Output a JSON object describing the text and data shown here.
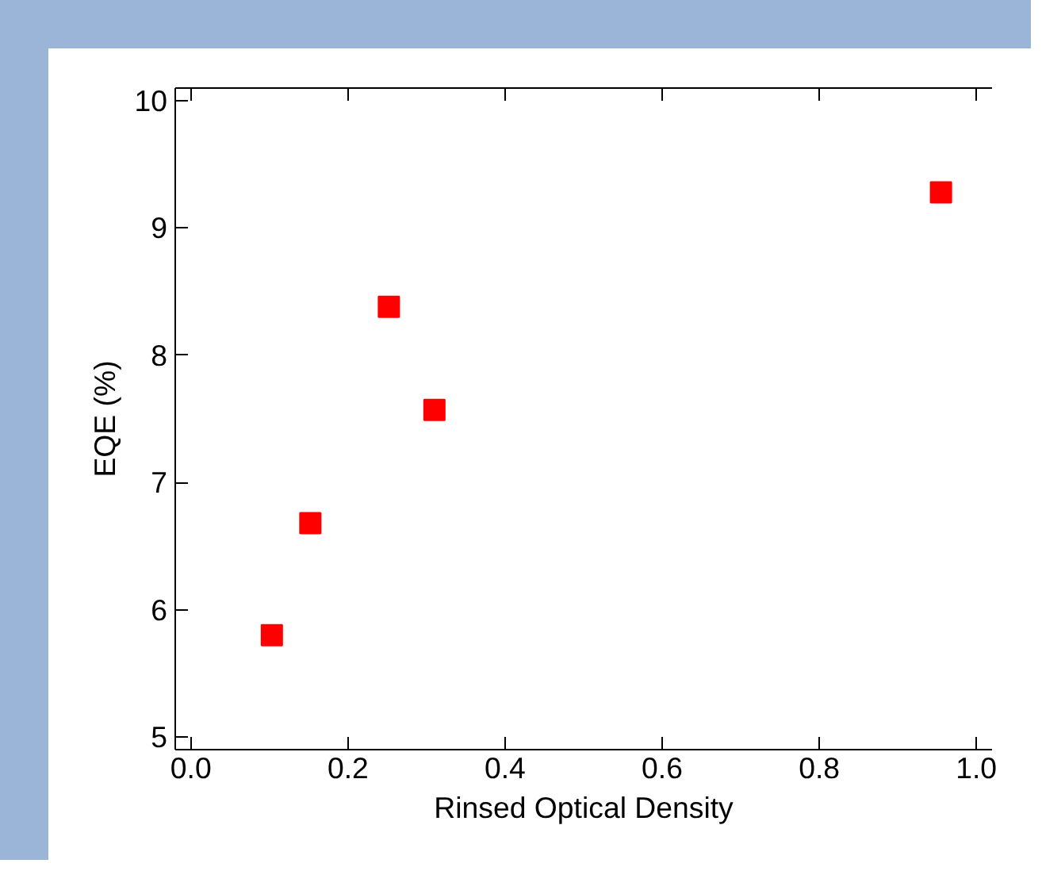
{
  "chart_data": {
    "type": "scatter",
    "xlabel": "Rinsed Optical Density",
    "ylabel": "EQE (%)",
    "x": [
      0.103,
      0.152,
      0.252,
      0.31,
      0.955
    ],
    "series": [
      {
        "color": "#ff0000",
        "values": [
          5.8,
          6.68,
          8.38,
          7.57,
          9.28
        ]
      }
    ],
    "marker": "square",
    "grid": false,
    "xlim": [
      -0.02,
      1.02
    ],
    "xticks": [
      {
        "value": 0.0,
        "label": "0.0"
      },
      0.2,
      0.4,
      0.6,
      0.8,
      {
        "value": 1.0,
        "label": "1.0"
      }
    ],
    "ylim": [
      4.9,
      10.1
    ],
    "yticks": [
      5,
      6,
      7,
      8,
      9,
      10
    ]
  }
}
